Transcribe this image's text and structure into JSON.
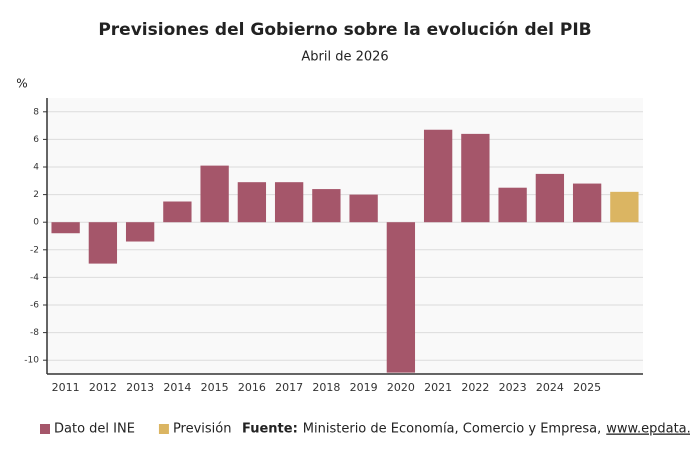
{
  "chart_data": {
    "type": "bar",
    "title": "Previsiones del Gobierno sobre la evolución del PIB",
    "subtitle": "Abril de 2026",
    "y_label": "%",
    "categories": [
      "2011",
      "2012",
      "2013",
      "2014",
      "2015",
      "2016",
      "2017",
      "2018",
      "2019",
      "2020",
      "2021",
      "2022",
      "2023",
      "2024",
      "2025",
      null
    ],
    "series": [
      {
        "name": "Dato del INE",
        "color": "#a5566a",
        "values": [
          -0.8,
          -3.0,
          -1.4,
          1.5,
          4.1,
          2.9,
          2.9,
          2.4,
          2.0,
          -10.9,
          6.7,
          6.4,
          2.5,
          3.5,
          2.8,
          null
        ]
      },
      {
        "name": "Previsión",
        "color": "#dbb562",
        "values": [
          null,
          null,
          null,
          null,
          null,
          null,
          null,
          null,
          null,
          null,
          null,
          null,
          null,
          null,
          null,
          2.2
        ]
      }
    ],
    "ylim": [
      -11,
      9
    ],
    "yticks": [
      -10,
      -8,
      -6,
      -4,
      -2,
      0,
      2,
      4,
      6,
      8
    ],
    "grid": true,
    "source_label": "Fuente:",
    "source_text": "Ministerio de Economía, Comercio y Empresa,",
    "source_link": "www.epdata.es"
  }
}
